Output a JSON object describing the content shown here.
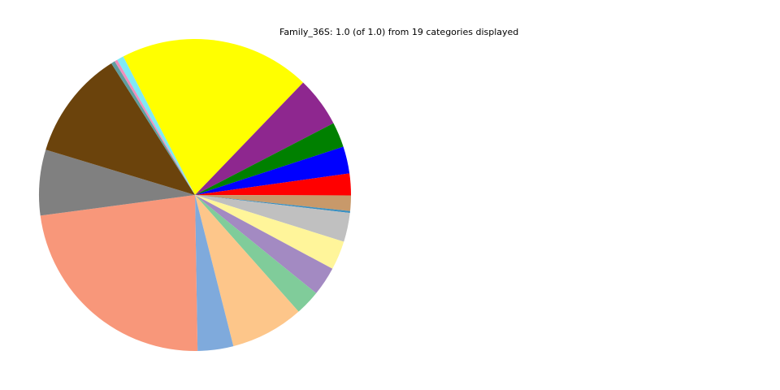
{
  "chart_data": {
    "type": "pie",
    "title": "Family_36S: 1.0 (of 1.0) from 19 categories displayed",
    "start_angle_deg": 117.4,
    "direction": "clockwise",
    "slices": [
      {
        "value": 0.198,
        "color": "#ffff00"
      },
      {
        "value": 0.052,
        "color": "#8e278f"
      },
      {
        "value": 0.026,
        "color": "#008000"
      },
      {
        "value": 0.028,
        "color": "#0000ff"
      },
      {
        "value": 0.0225,
        "color": "#ff0000"
      },
      {
        "value": 0.016,
        "color": "#c8996a"
      },
      {
        "value": 0.002,
        "color": "#3a8fc0"
      },
      {
        "value": 0.03,
        "color": "#c0c0c0"
      },
      {
        "value": 0.03,
        "color": "#fff59a"
      },
      {
        "value": 0.03,
        "color": "#a38ac2"
      },
      {
        "value": 0.026,
        "color": "#80cc9a"
      },
      {
        "value": 0.076,
        "color": "#fdc68a"
      },
      {
        "value": 0.037,
        "color": "#7faadc"
      },
      {
        "value": 0.2315,
        "color": "#f8977a"
      },
      {
        "value": 0.068,
        "color": "#808080"
      },
      {
        "value": 0.113,
        "color": "#6b430c"
      },
      {
        "value": 0.004,
        "color": "#5f9ea0"
      },
      {
        "value": 0.003,
        "color": "#f08fbd"
      },
      {
        "value": 0.007,
        "color": "#7fe9f5"
      }
    ]
  }
}
